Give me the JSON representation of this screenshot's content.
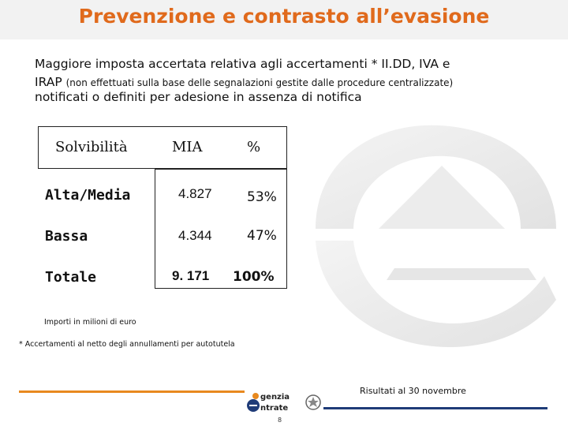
{
  "title": "Prevenzione e contrasto all’evasione",
  "subtitle": {
    "line1": "Maggiore imposta accertata relativa agli accertamenti * II.DD, IVA e",
    "line2_main": "IRAP",
    "line2_small": "(non effettuati sulla base delle segnalazioni gestite dalle procedure centralizzate)",
    "line3": "notificati o definiti per adesione in assenza di notifica"
  },
  "table": {
    "headers": {
      "solvibilita": "Solvibilità",
      "mia": "MIA",
      "pct": "%"
    },
    "rows": [
      {
        "label": "Alta/Media",
        "mia": "4.827",
        "pct": "53%"
      },
      {
        "label": "Bassa",
        "mia": "4.344",
        "pct": "47%"
      },
      {
        "label": "Totale",
        "mia": "9. 171",
        "pct": "100%"
      }
    ]
  },
  "notes": {
    "importi": "Importi in milioni di euro",
    "accertamenti": "* Accertamenti al netto degli annullamenti per autotutela"
  },
  "footer": {
    "date_text": "Risultati al 30 novembre",
    "page_number": "8",
    "logo_line1": "genzia",
    "logo_line2": "ntrate"
  },
  "colors": {
    "accent": "#e06a1c",
    "orange_line": "#e8891f",
    "blue_line": "#1f3c78"
  }
}
